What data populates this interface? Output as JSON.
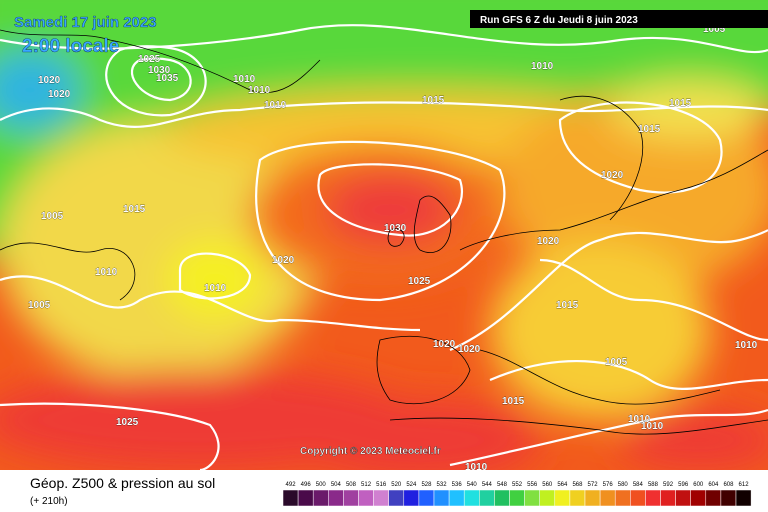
{
  "header": {
    "date": "Samedi 17 juin 2023",
    "time": "2:00 locale",
    "run": "Run GFS 6 Z du Jeudi 8 juin 2023"
  },
  "copyright": "Copyright © 2023 Meteociel.fr",
  "footer": {
    "title": "Géop. Z500 & pression au sol",
    "lead": "(+ 210h)"
  },
  "isobar_labels": [
    "1025",
    "1030",
    "1035",
    "1020",
    "1020",
    "1010",
    "1010",
    "1010",
    "1010",
    "1015",
    "1015",
    "1015",
    "1020",
    "1005",
    "1015",
    "1010",
    "1010",
    "1020",
    "1030",
    "1025",
    "1020",
    "1015",
    "1005",
    "1020",
    "1020",
    "1005",
    "1010",
    "1015",
    "1025",
    "1010",
    "1010",
    "1010",
    "1005"
  ],
  "scale": [
    492,
    496,
    500,
    504,
    508,
    512,
    516,
    520,
    524,
    528,
    532,
    536,
    540,
    544,
    548,
    552,
    556,
    560,
    564,
    568,
    572,
    576,
    580,
    584,
    588,
    592,
    596,
    600,
    604,
    608,
    612
  ]
}
